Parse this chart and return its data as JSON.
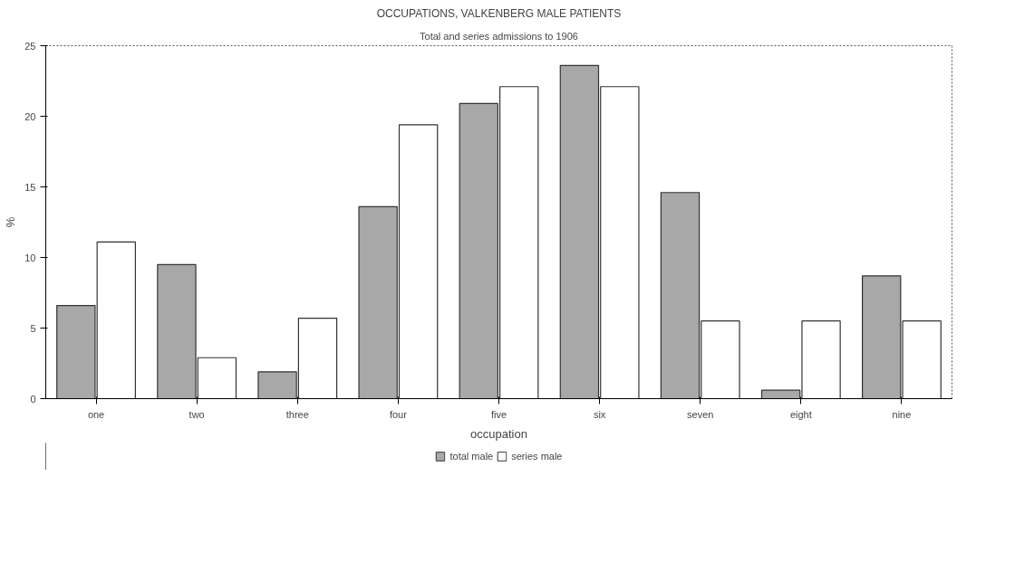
{
  "chart_data": {
    "type": "bar",
    "title": "OCCUPATIONS, VALKENBERG MALE PATIENTS",
    "subtitle": "Total and series admissions to 1906",
    "xlabel": "occupation",
    "ylabel": "%",
    "categories": [
      "one",
      "two",
      "three",
      "four",
      "five",
      "six",
      "seven",
      "eight",
      "nine"
    ],
    "series": [
      {
        "name": "total male",
        "color": "#a8a8a8",
        "values": [
          6.6,
          9.5,
          1.9,
          13.6,
          20.9,
          23.6,
          14.6,
          0.6,
          8.7
        ]
      },
      {
        "name": "series male",
        "color": "#ffffff",
        "values": [
          11.1,
          2.9,
          5.7,
          19.4,
          22.1,
          22.1,
          5.5,
          5.5,
          5.5
        ]
      }
    ],
    "ylim": [
      0,
      25
    ],
    "yticks": [
      0,
      5,
      10,
      15,
      20,
      25
    ],
    "grid": false,
    "legend": "bottom"
  }
}
